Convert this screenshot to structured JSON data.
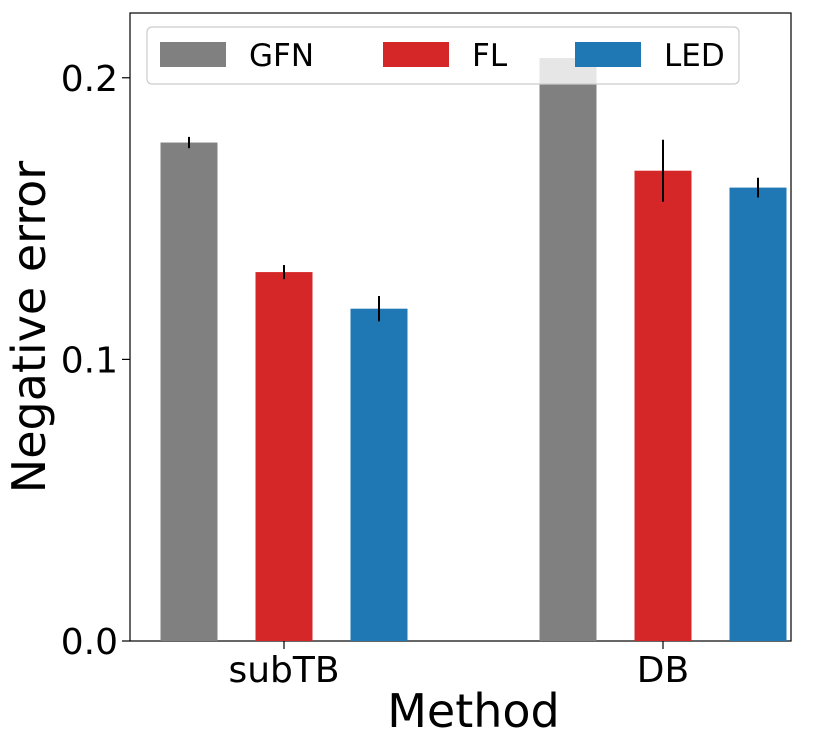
{
  "chart_data": {
    "type": "bar",
    "title": "",
    "xlabel": "Method",
    "ylabel": "Negative error",
    "categories": [
      "subTB",
      "DB"
    ],
    "ylim": [
      0,
      0.223
    ],
    "yticks": [
      0.0,
      0.1,
      0.2
    ],
    "ytick_labels": [
      "0.0",
      "0.1",
      "0.2"
    ],
    "grid": false,
    "legend": {
      "position": "top",
      "columns": 3
    },
    "series": [
      {
        "name": "GFN",
        "color": "#808080",
        "values": [
          0.177,
          0.207
        ],
        "errors": [
          0.002,
          0.0
        ]
      },
      {
        "name": "FL",
        "color": "#d62728",
        "values": [
          0.131,
          0.167
        ],
        "errors": [
          0.0025,
          0.011
        ]
      },
      {
        "name": "LED",
        "color": "#1f77b4",
        "values": [
          0.118,
          0.161
        ],
        "errors": [
          0.0045,
          0.0035
        ]
      }
    ]
  }
}
